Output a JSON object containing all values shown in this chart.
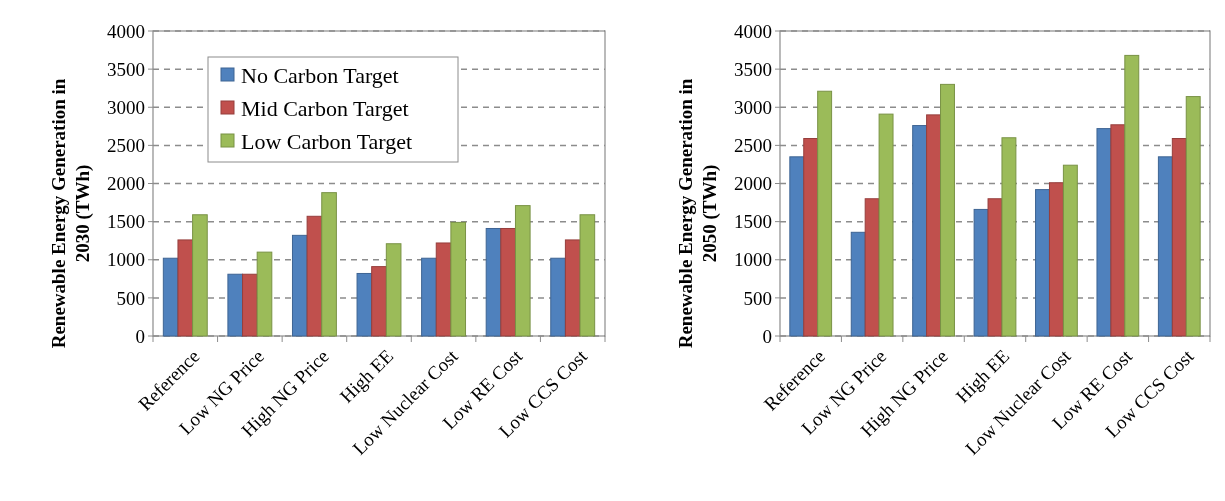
{
  "chart_data": [
    {
      "type": "bar",
      "ylabel": "Renewable Energy Generation in 2030 (TWh)",
      "categories": [
        "Reference",
        "Low NG Price",
        "High NG Price",
        "High EE",
        "Low Nuclear Cost",
        "Low RE Cost",
        "Low CCS Cost"
      ],
      "series": [
        {
          "name": "No Carbon Target",
          "color": "#4f81bd",
          "values": [
            1020,
            810,
            1320,
            820,
            1020,
            1410,
            1020
          ]
        },
        {
          "name": "Mid Carbon Target",
          "color": "#c0504d",
          "values": [
            1260,
            810,
            1570,
            910,
            1220,
            1410,
            1260
          ]
        },
        {
          "name": "Low Carbon Target",
          "color": "#9bbb59",
          "values": [
            1590,
            1100,
            1880,
            1210,
            1490,
            1710,
            1590
          ]
        }
      ],
      "ylim": [
        0,
        4000
      ],
      "yticks": [
        0,
        500,
        1000,
        1500,
        2000,
        2500,
        3000,
        3500,
        4000
      ],
      "grid": "y",
      "legend": "top left"
    },
    {
      "type": "bar",
      "ylabel": "Renewable Energy Generation in 2050 (TWh)",
      "categories": [
        "Reference",
        "Low NG Price",
        "High NG Price",
        "High EE",
        "Low Nuclear Cost",
        "Low RE Cost",
        "Low CCS Cost"
      ],
      "series": [
        {
          "color": "#4f81bd",
          "values": [
            2350,
            1360,
            2760,
            1660,
            1920,
            2720,
            2350
          ]
        },
        {
          "color": "#c0504d",
          "values": [
            2590,
            1800,
            2900,
            1800,
            2010,
            2770,
            2590
          ]
        },
        {
          "color": "#9bbb59",
          "values": [
            3210,
            2910,
            3300,
            2600,
            2240,
            3680,
            3140
          ]
        }
      ],
      "ylim": [
        0,
        4000
      ],
      "yticks": [
        0,
        500,
        1000,
        1500,
        2000,
        2500,
        3000,
        3500,
        4000
      ],
      "grid": "y",
      "legend": false
    }
  ]
}
